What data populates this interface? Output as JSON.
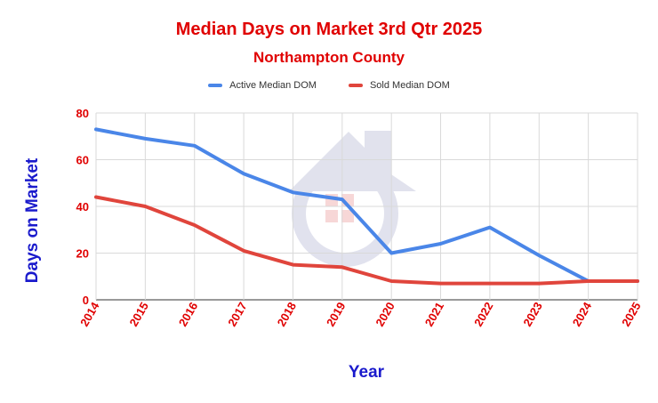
{
  "chart_data": {
    "type": "line",
    "title": "Median Days on Market 3rd Qtr 2025",
    "subtitle": "Northampton County",
    "xlabel": "Year",
    "ylabel": "Days on Market",
    "categories": [
      "2014",
      "2015",
      "2016",
      "2017",
      "2018",
      "2019",
      "2020",
      "2021",
      "2022",
      "2023",
      "2024",
      "2025"
    ],
    "yticks": [
      "0",
      "20",
      "40",
      "60",
      "80"
    ],
    "ylim": [
      0,
      80
    ],
    "grid": true,
    "legend_position": "top",
    "series": [
      {
        "name": "Active Median DOM",
        "color": "#4a86e8",
        "values": [
          73,
          69,
          66,
          54,
          46,
          43,
          20,
          24,
          31,
          19,
          8,
          8
        ]
      },
      {
        "name": "Sold Median DOM",
        "color": "#e0453c",
        "values": [
          44,
          40,
          32,
          21,
          15,
          14,
          8,
          7,
          7,
          7,
          8,
          8
        ]
      }
    ],
    "colors": {
      "title": "#e00000",
      "axis_label": "#1a1acc",
      "tick_label": "#e00000",
      "grid": "#d9d9d9",
      "watermark": "#c9cbe0"
    }
  }
}
